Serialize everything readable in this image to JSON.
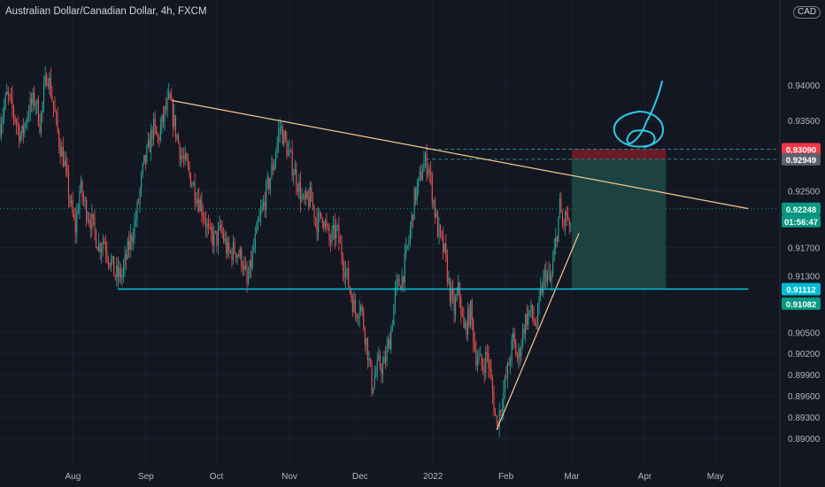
{
  "title": "Australian Dollar/Canadian Dollar, 4h, FXCM",
  "currency": "CAD",
  "colors": {
    "background": "#131722",
    "up_candle": "#26a69a",
    "down_candle": "#ef5350",
    "trendline": "#f5c98b",
    "support_line": "#00bcd4",
    "target_zone": "#1f4a47",
    "stop_zone": "#8b1f28",
    "annotation": "#2ec8e6",
    "axis_text": "#b2b5be"
  },
  "chart_data": {
    "type": "candlestick",
    "symbol": "AUD/CAD",
    "timeframe": "4h",
    "x_labels": [
      "Aug",
      "Sep",
      "Oct",
      "Nov",
      "Dec",
      "2022",
      "Feb",
      "Mar",
      "Apr",
      "May"
    ],
    "y_ticks": [
      "0.94000",
      "0.93500",
      "0.92500",
      "0.91700",
      "0.91300",
      "0.90500",
      "0.90200",
      "0.89900",
      "0.89600",
      "0.89300",
      "0.89000"
    ],
    "ylim": [
      0.888,
      0.9445
    ],
    "price_path": [
      [
        "2021-07-01",
        0.9345
      ],
      [
        "2021-07-04",
        0.9385
      ],
      [
        "2021-07-07",
        0.9358
      ],
      [
        "2021-07-10",
        0.9325
      ],
      [
        "2021-07-13",
        0.9365
      ],
      [
        "2021-07-16",
        0.938
      ],
      [
        "2021-07-18",
        0.9345
      ],
      [
        "2021-07-21",
        0.942
      ],
      [
        "2021-07-23",
        0.9385
      ],
      [
        "2021-07-26",
        0.9322
      ],
      [
        "2021-07-28",
        0.9295
      ],
      [
        "2021-07-31",
        0.923
      ],
      [
        "2021-08-02",
        0.9195
      ],
      [
        "2021-08-04",
        0.9255
      ],
      [
        "2021-08-06",
        0.923
      ],
      [
        "2021-08-09",
        0.9205
      ],
      [
        "2021-08-12",
        0.9172
      ],
      [
        "2021-08-14",
        0.9182
      ],
      [
        "2021-08-17",
        0.915
      ],
      [
        "2021-08-19",
        0.913
      ],
      [
        "2021-08-22",
        0.9132
      ],
      [
        "2021-08-25",
        0.9175
      ],
      [
        "2021-08-28",
        0.9215
      ],
      [
        "2021-08-31",
        0.9285
      ],
      [
        "2021-09-02",
        0.9308
      ],
      [
        "2021-09-04",
        0.934
      ],
      [
        "2021-09-06",
        0.9322
      ],
      [
        "2021-09-09",
        0.936
      ],
      [
        "2021-09-11",
        0.9378
      ],
      [
        "2021-09-14",
        0.933
      ],
      [
        "2021-09-16",
        0.93
      ],
      [
        "2021-09-19",
        0.9278
      ],
      [
        "2021-09-22",
        0.925
      ],
      [
        "2021-09-25",
        0.9225
      ],
      [
        "2021-09-28",
        0.9185
      ],
      [
        "2021-10-01",
        0.9182
      ],
      [
        "2021-10-03",
        0.9195
      ],
      [
        "2021-10-06",
        0.916
      ],
      [
        "2021-10-09",
        0.9168
      ],
      [
        "2021-10-12",
        0.9152
      ],
      [
        "2021-10-14",
        0.9115
      ],
      [
        "2021-10-17",
        0.9172
      ],
      [
        "2021-10-19",
        0.9205
      ],
      [
        "2021-10-22",
        0.9245
      ],
      [
        "2021-10-25",
        0.9285
      ],
      [
        "2021-10-28",
        0.9342
      ],
      [
        "2021-10-30",
        0.932
      ],
      [
        "2021-11-02",
        0.9288
      ],
      [
        "2021-11-04",
        0.9268
      ],
      [
        "2021-11-07",
        0.923
      ],
      [
        "2021-11-10",
        0.924
      ],
      [
        "2021-11-13",
        0.9202
      ],
      [
        "2021-11-15",
        0.9218
      ],
      [
        "2021-11-18",
        0.9178
      ],
      [
        "2021-11-21",
        0.9195
      ],
      [
        "2021-11-24",
        0.9148
      ],
      [
        "2021-11-26",
        0.912
      ],
      [
        "2021-11-29",
        0.9078
      ],
      [
        "2021-12-01",
        0.9092
      ],
      [
        "2021-12-04",
        0.903
      ],
      [
        "2021-12-06",
        0.8975
      ],
      [
        "2021-12-09",
        0.9005
      ],
      [
        "2021-12-11",
        0.9
      ],
      [
        "2021-12-14",
        0.9048
      ],
      [
        "2021-12-16",
        0.9108
      ],
      [
        "2021-12-19",
        0.9128
      ],
      [
        "2021-12-22",
        0.9185
      ],
      [
        "2021-12-24",
        0.9238
      ],
      [
        "2021-12-26",
        0.926
      ],
      [
        "2021-12-28",
        0.929
      ],
      [
        "2021-12-30",
        0.9288
      ],
      [
        "2022-01-01",
        0.924
      ],
      [
        "2022-01-03",
        0.9195
      ],
      [
        "2022-01-06",
        0.916
      ],
      [
        "2022-01-08",
        0.911
      ],
      [
        "2022-01-10",
        0.908
      ],
      [
        "2022-01-12",
        0.9112
      ],
      [
        "2022-01-14",
        0.905
      ],
      [
        "2022-01-17",
        0.908
      ],
      [
        "2022-01-19",
        0.902
      ],
      [
        "2022-01-22",
        0.9
      ],
      [
        "2022-01-24",
        0.902
      ],
      [
        "2022-01-26",
        0.897
      ],
      [
        "2022-01-28",
        0.8918
      ],
      [
        "2022-01-30",
        0.895
      ],
      [
        "2022-02-02",
        0.9
      ],
      [
        "2022-02-04",
        0.904
      ],
      [
        "2022-02-06",
        0.901
      ],
      [
        "2022-02-09",
        0.9065
      ],
      [
        "2022-02-11",
        0.908
      ],
      [
        "2022-02-14",
        0.906
      ],
      [
        "2022-02-16",
        0.911
      ],
      [
        "2022-02-18",
        0.9135
      ],
      [
        "2022-02-20",
        0.9118
      ],
      [
        "2022-02-22",
        0.9175
      ],
      [
        "2022-02-24",
        0.923
      ],
      [
        "2022-02-25",
        0.92
      ],
      [
        "2022-02-27",
        0.9218
      ],
      [
        "2022-02-28",
        0.9185
      ],
      [
        "2022-03-01",
        0.9224
      ]
    ],
    "lines": [
      {
        "name": "descending-trendline",
        "from": [
          "2021-09-12",
          0.9378
        ],
        "to": [
          "2022-05-15",
          0.9225
        ]
      },
      {
        "name": "ascending-trendline",
        "from": [
          "2022-01-28",
          0.8912
        ],
        "to": [
          "2022-03-04",
          0.919
        ]
      },
      {
        "name": "support-line",
        "from": [
          "2021-08-20",
          0.91112
        ],
        "to": [
          "2022-05-15",
          0.91112
        ]
      }
    ],
    "position": {
      "type": "short",
      "start": "2022-03-01",
      "end": "2022-04-10",
      "entry": 0.92949,
      "stop": 0.9309,
      "target": 0.91112
    },
    "price_labels": [
      {
        "text": "0.93090",
        "value": 0.9309,
        "color": "#f23645"
      },
      {
        "text": "0.92949",
        "value": 0.92949,
        "color": "#5d606b"
      },
      {
        "text": "0.92248",
        "value": 0.92248,
        "color": "#089981"
      },
      {
        "text": "01:56:47",
        "value": 0.92248,
        "color": "#089981",
        "offset": 1
      },
      {
        "text": "0.91112",
        "value": 0.91112,
        "color": "#00bcd4"
      },
      {
        "text": "0.91082",
        "value": 0.91082,
        "color": "#089981",
        "offset": 1
      }
    ],
    "current_price": 0.92248
  }
}
